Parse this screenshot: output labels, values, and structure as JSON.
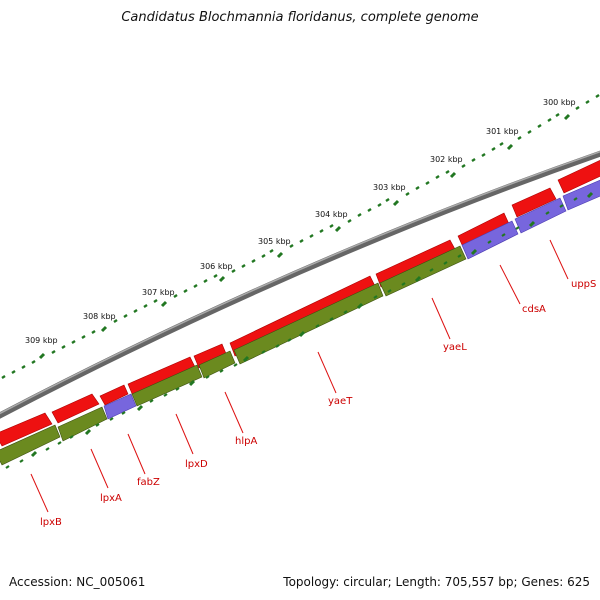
{
  "title": "Candidatus Blochmannia floridanus, complete genome",
  "footer": {
    "accession": "Accession: NC_005061",
    "summary": "Topology: circular; Length: 705,557 bp; Genes: 625"
  },
  "colors": {
    "background": "#ffffff",
    "backbone": "#7a7a7a",
    "feature_forward": "#ee1111",
    "feature_cds": "#6b8a1f",
    "feature_purple": "#7766dd",
    "tick": "#227722",
    "label": "#cc0000"
  },
  "scale_ticks": [
    "300 kbp",
    "301 kbp",
    "302 kbp",
    "303 kbp",
    "304 kbp",
    "305 kbp",
    "306 kbp",
    "307 kbp",
    "308 kbp",
    "309 kbp"
  ],
  "gene_labels": [
    "uppS",
    "cdsA",
    "yaeL",
    "yaeT",
    "hlpA",
    "lpxD",
    "fabZ",
    "lpxA",
    "lpxB"
  ]
}
